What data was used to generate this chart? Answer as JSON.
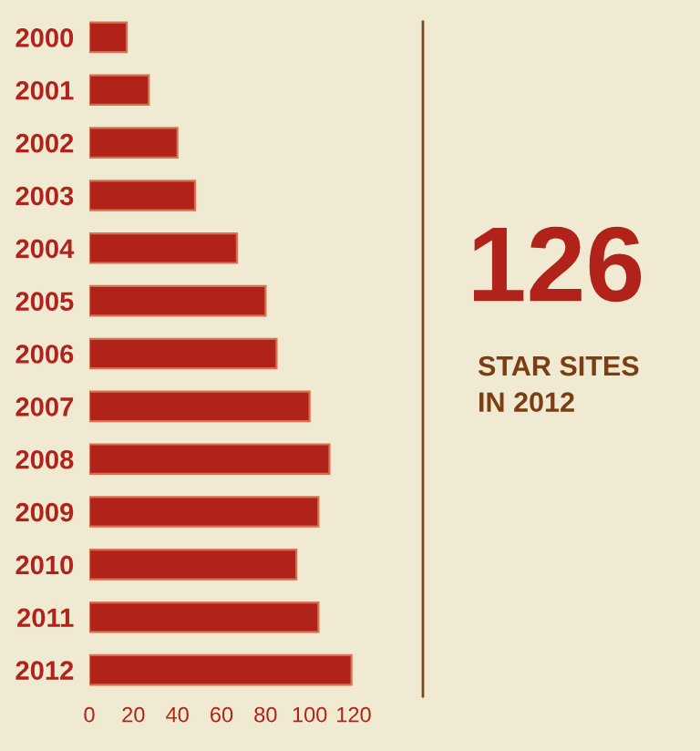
{
  "chart_data": {
    "type": "bar",
    "orientation": "horizontal",
    "categories": [
      "2000",
      "2001",
      "2002",
      "2003",
      "2004",
      "2005",
      "2006",
      "2007",
      "2008",
      "2009",
      "2010",
      "2011",
      "2012"
    ],
    "values": [
      17,
      27,
      40,
      48,
      67,
      80,
      85,
      100,
      109,
      104,
      94,
      104,
      119
    ],
    "color": "#b0221a",
    "xlim": [
      0,
      120
    ],
    "xticks": [
      0,
      20,
      40,
      60,
      80,
      100,
      120
    ],
    "grid": false,
    "legend": false,
    "annotations": [
      "126",
      "STAR SITES\nIN 2012"
    ]
  }
}
